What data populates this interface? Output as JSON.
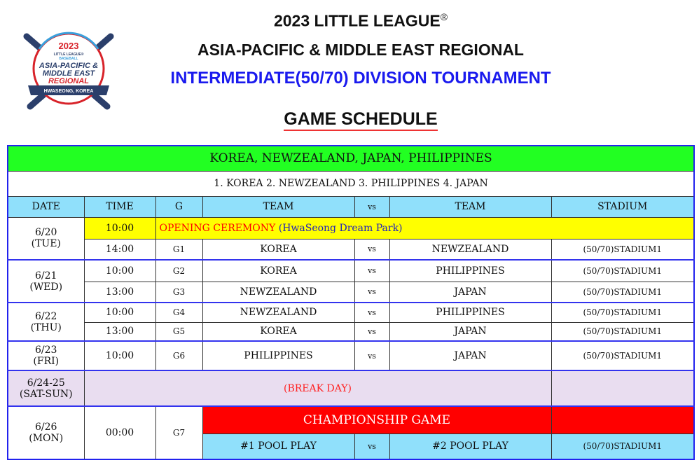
{
  "header": {
    "line1": "2023 LITTLE LEAGUE",
    "registered": "®",
    "line2": "ASIA-PACIFIC & MIDDLE EAST REGIONAL",
    "line3": "INTERMEDIATE(50/70)  DIVISION  TOURNAMENT",
    "schedule_title": "GAME SCHEDULE"
  },
  "logo": {
    "year": "2023",
    "brand": "LITTLE LEAGUE® BASEBALL",
    "name1": "ASIA-PACIFIC &",
    "name2": "MIDDLE EAST",
    "name3": "REGIONAL",
    "location": "HWASEONG, KOREA",
    "colors": {
      "navy": "#2b3f6b",
      "red": "#d8232a",
      "blue": "#3aa0dc"
    }
  },
  "pool": {
    "teams": "KOREA,  NEWZEALAND,  JAPAN,  PHILIPPINES",
    "seeding": "1. KOREA   2. NEWZEALAND  3. PHILIPPINES   4. JAPAN"
  },
  "columns": [
    "DATE",
    "TIME",
    "G",
    "TEAM",
    "vs",
    "TEAM",
    "STADIUM"
  ],
  "days": [
    {
      "date": "6/20",
      "dow": "(TUE)"
    },
    {
      "date": "6/21",
      "dow": "(WED)"
    },
    {
      "date": "6/22",
      "dow": "(THU)"
    },
    {
      "date": "6/23",
      "dow": "(FRI)"
    },
    {
      "date": "6/24-25",
      "dow": "(SAT-SUN)"
    },
    {
      "date": "6/26",
      "dow": "(MON)"
    }
  ],
  "opening": {
    "time": "10:00",
    "label": "OPENING  CEREMONY",
    "venue": "(HwaSeong  Dream  Park)"
  },
  "games": [
    {
      "time": "14:00",
      "g": "G1",
      "home": "KOREA",
      "vs": "vs",
      "away": "NEWZEALAND",
      "stadium": "(50/70)STADIUM1"
    },
    {
      "time": "10:00",
      "g": "G2",
      "home": "KOREA",
      "vs": "vs",
      "away": "PHILIPPINES",
      "stadium": "(50/70)STADIUM1"
    },
    {
      "time": "13:00",
      "g": "G3",
      "home": "NEWZEALAND",
      "vs": "vs",
      "away": "JAPAN",
      "stadium": "(50/70)STADIUM1"
    },
    {
      "time": "10:00",
      "g": "G4",
      "home": "NEWZEALAND",
      "vs": "vs",
      "away": "PHILIPPINES",
      "stadium": "(50/70)STADIUM1"
    },
    {
      "time": "13:00",
      "g": "G5",
      "home": "KOREA",
      "vs": "vs",
      "away": "JAPAN",
      "stadium": "(50/70)STADIUM1"
    },
    {
      "time": "10:00",
      "g": "G6",
      "home": "PHILIPPINES",
      "vs": "vs",
      "away": "JAPAN",
      "stadium": "(50/70)STADIUM1"
    },
    {
      "time": "00:00",
      "g": "G7",
      "home": "#1  POOL  PLAY",
      "vs": "vs",
      "away": "#2  POOL  PLAY",
      "stadium": "(50/70)STADIUM1"
    }
  ],
  "break_day": "(BREAK  DAY)",
  "championship": "CHAMPIONSHIP  GAME",
  "colors": {
    "pool_bar": "#22ff22",
    "header": "#90e0fb",
    "opening": "#ffff00",
    "break": "#e9ddf0",
    "championship": "#ff0000",
    "border_accent": "#2222ee"
  }
}
